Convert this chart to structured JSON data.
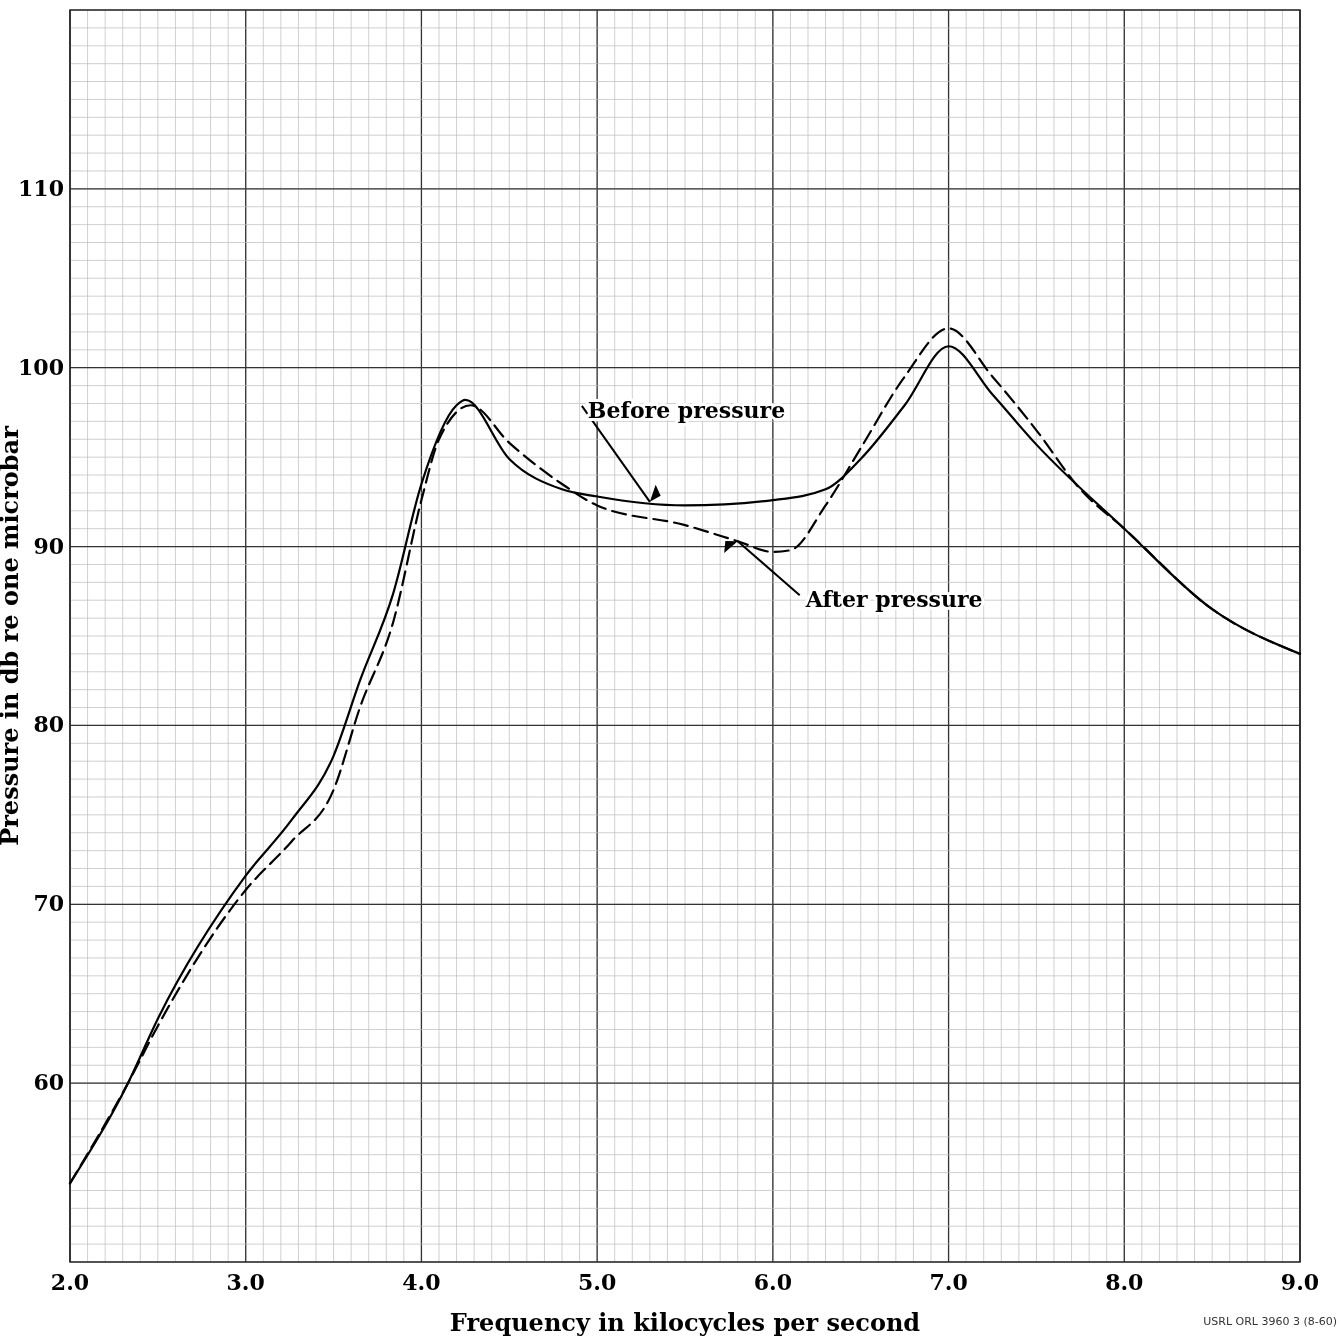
{
  "chart_data": {
    "type": "line",
    "xlabel": "Frequency in kilocycles per second",
    "ylabel": "Pressure in db re one microbar",
    "xlim": [
      2,
      9
    ],
    "ylim": [
      50,
      120
    ],
    "xticks": [
      {
        "value": 2,
        "label": "2.0"
      },
      {
        "value": 3,
        "label": "3.0"
      },
      {
        "value": 4,
        "label": "4.0"
      },
      {
        "value": 5,
        "label": "5.0"
      },
      {
        "value": 6,
        "label": "6.0"
      },
      {
        "value": 7,
        "label": "7.0"
      },
      {
        "value": 8,
        "label": "8.0"
      },
      {
        "value": 9,
        "label": "9.0"
      }
    ],
    "yticks": [
      60,
      70,
      80,
      90,
      100,
      110
    ],
    "grid": true,
    "marker": "none",
    "series": [
      {
        "color": "#000000",
        "line_style": "solid",
        "x": [
          2.0,
          2.33,
          2.5,
          3.0,
          3.26,
          3.5,
          3.65,
          3.84,
          4.0,
          4.2,
          4.25,
          4.5,
          4.8,
          5.0,
          5.5,
          6.0,
          6.3,
          6.5,
          6.75,
          7.0,
          7.25,
          7.5,
          8.0,
          8.5,
          9.0
        ],
        "values": [
          54.4,
          60.0,
          63.6,
          71.6,
          74.7,
          78.3,
          82.5,
          87.4,
          93.5,
          97.9,
          98.2,
          94.9,
          93.2,
          92.8,
          92.3,
          92.6,
          93.2,
          94.9,
          97.9,
          101.2,
          98.5,
          95.7,
          91.0,
          86.5,
          84.0
        ]
      },
      {
        "color": "#000000",
        "line_style": "dashed",
        "x": [
          2.0,
          2.33,
          2.5,
          3.0,
          3.26,
          3.5,
          3.65,
          3.84,
          4.0,
          4.1,
          4.28,
          4.5,
          4.8,
          5.0,
          5.5,
          5.8,
          6.0,
          6.1,
          6.3,
          6.5,
          6.75,
          7.0,
          7.25,
          7.5,
          7.75,
          8.0,
          8.5,
          9.0
        ],
        "values": [
          54.4,
          60.0,
          63.2,
          70.8,
          73.5,
          76.4,
          81.0,
          85.8,
          92.6,
          96.0,
          97.9,
          95.8,
          93.5,
          92.3,
          91.2,
          90.3,
          89.7,
          89.8,
          92.3,
          95.5,
          99.5,
          102.2,
          99.5,
          96.5,
          93.2,
          91.0,
          86.5,
          84.0
        ]
      }
    ],
    "annotations": [
      {
        "text": "Before pressure",
        "x": 5.3,
        "y": 92.5
      },
      {
        "text": "After pressure",
        "x": 5.8,
        "y": 90.3
      },
      "USRL ORL 3960 3 (8-60)"
    ]
  }
}
